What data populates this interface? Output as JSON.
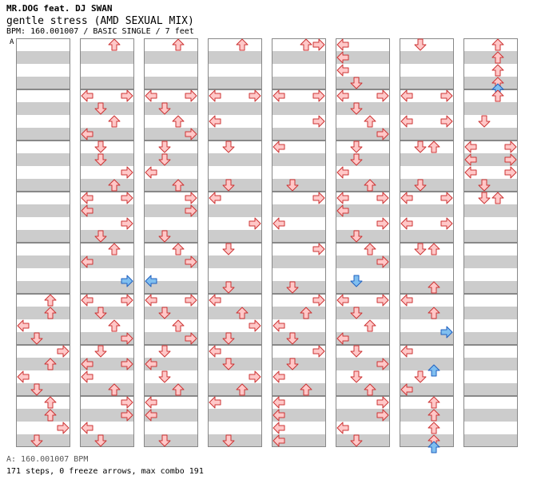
{
  "header": {
    "artist": "MR.DOG feat. DJ SWAN",
    "title": "gentle stress (AMD SEXUAL MIX)",
    "meta": "BPM: 160.001007 / BASIC SINGLE / 7 feet"
  },
  "bpm_marker": "A",
  "footer": {
    "bpm": "A: 160.001007 BPM",
    "stats": "171 steps, 0 freeze arrows, max combo 191"
  },
  "colors": {
    "stripe": "#cccccc",
    "normal_fill": "#ffc8c8",
    "normal_stroke": "#cc3333",
    "shock_fill": "#80bff0",
    "shock_stroke": "#2060c0"
  },
  "columns": [
    [],
    [
      [
        "8",
        "0"
      ],
      [
        "8",
        "1"
      ]
    ],
    [
      [
        "8",
        "0"
      ],
      [
        "8",
        "1"
      ]
    ],
    [
      [
        "8",
        "0"
      ]
    ],
    [
      [
        "8",
        "0"
      ],
      [
        "8",
        "1"
      ]
    ],
    [
      [
        "4",
        "0"
      ],
      [
        "4",
        "1"
      ],
      [
        "4",
        "2"
      ],
      [
        "4",
        "3"
      ]
    ],
    [
      [
        "6",
        "0"
      ]
    ],
    [
      [
        "7",
        "0"
      ],
      [
        "7",
        "1"
      ]
    ]
  ]
}
